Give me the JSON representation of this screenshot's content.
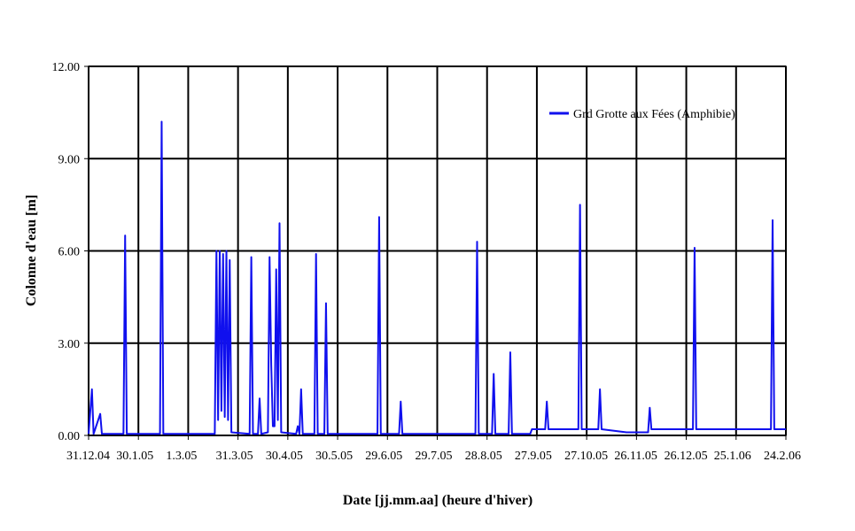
{
  "chart_data": {
    "type": "line",
    "xlabel": "Date [jj.mm.aa] (heure d'hiver)",
    "ylabel": "Colonne d'eau [m]",
    "xlim": [
      "2004-12-31",
      "2006-02-24"
    ],
    "xticks": [
      {
        "value": "2004-12-31",
        "label": "31.12.04"
      },
      {
        "value": "2005-01-30",
        "label": "30.1.05"
      },
      {
        "value": "2005-03-01",
        "label": "1.3.05"
      },
      {
        "value": "2005-03-31",
        "label": "31.3.05"
      },
      {
        "value": "2005-04-30",
        "label": "30.4.05"
      },
      {
        "value": "2005-05-30",
        "label": "30.5.05"
      },
      {
        "value": "2005-06-29",
        "label": "29.6.05"
      },
      {
        "value": "2005-07-29",
        "label": "29.7.05"
      },
      {
        "value": "2005-08-28",
        "label": "28.8.05"
      },
      {
        "value": "2005-09-27",
        "label": "27.9.05"
      },
      {
        "value": "2005-10-27",
        "label": "27.10.05"
      },
      {
        "value": "2005-11-26",
        "label": "26.11.05"
      },
      {
        "value": "2005-12-26",
        "label": "26.12.05"
      },
      {
        "value": "2006-01-25",
        "label": "25.1.06"
      },
      {
        "value": "2006-02-24",
        "label": "24.2.06"
      }
    ],
    "ylim": [
      0,
      12
    ],
    "yticks": [
      {
        "value": 0,
        "label": "0.00"
      },
      {
        "value": 3,
        "label": "3.00"
      },
      {
        "value": 6,
        "label": "6.00"
      },
      {
        "value": 9,
        "label": "9.00"
      },
      {
        "value": 12,
        "label": "12.00"
      }
    ],
    "grid": true,
    "legend": "upper right",
    "series": [
      {
        "name": "Grd Grotte aux Fées (Amphibie)",
        "color": "#1010ee",
        "x": [
          "2004-12-31",
          "2005-01-02",
          "2005-01-03",
          "2005-01-07",
          "2005-01-08",
          "2005-01-21",
          "2005-01-22",
          "2005-01-23",
          "2005-02-12",
          "2005-02-13",
          "2005-02-14",
          "2005-03-17",
          "2005-03-18",
          "2005-03-19",
          "2005-03-20",
          "2005-03-21",
          "2005-03-22",
          "2005-03-23",
          "2005-03-24",
          "2005-03-25",
          "2005-03-26",
          "2005-03-27",
          "2005-04-07",
          "2005-04-08",
          "2005-04-09",
          "2005-04-12",
          "2005-04-13",
          "2005-04-14",
          "2005-04-18",
          "2005-04-19",
          "2005-04-20",
          "2005-04-21",
          "2005-04-22",
          "2005-04-23",
          "2005-04-24",
          "2005-04-25",
          "2005-04-26",
          "2005-05-05",
          "2005-05-06",
          "2005-05-07",
          "2005-05-08",
          "2005-05-09",
          "2005-05-16",
          "2005-05-17",
          "2005-05-18",
          "2005-05-22",
          "2005-05-23",
          "2005-05-24",
          "2005-06-23",
          "2005-06-24",
          "2005-06-25",
          "2005-07-06",
          "2005-07-07",
          "2005-07-08",
          "2005-08-21",
          "2005-08-22",
          "2005-08-23",
          "2005-08-31",
          "2005-09-01",
          "2005-09-02",
          "2005-09-10",
          "2005-09-11",
          "2005-09-12",
          "2005-09-23",
          "2005-09-24",
          "2005-10-02",
          "2005-10-03",
          "2005-10-04",
          "2005-10-22",
          "2005-10-23",
          "2005-10-24",
          "2005-11-03",
          "2005-11-04",
          "2005-11-05",
          "2005-11-20",
          "2005-12-03",
          "2005-12-04",
          "2005-12-05",
          "2005-12-30",
          "2005-12-31",
          "2006-01-01",
          "2006-02-15",
          "2006-02-16",
          "2006-02-17",
          "2006-02-24"
        ],
        "values": [
          0.05,
          1.5,
          0.05,
          0.7,
          0.05,
          0.05,
          6.5,
          0.05,
          0.05,
          10.2,
          0.05,
          0.05,
          6.0,
          0.5,
          6.0,
          0.8,
          5.9,
          0.6,
          6.0,
          0.5,
          5.7,
          0.1,
          0.05,
          5.8,
          0.05,
          0.05,
          1.2,
          0.05,
          0.1,
          5.8,
          2.3,
          0.3,
          0.3,
          5.4,
          0.5,
          6.9,
          0.1,
          0.05,
          0.3,
          0.05,
          1.5,
          0.05,
          0.05,
          5.9,
          0.05,
          0.05,
          4.3,
          0.05,
          0.05,
          7.1,
          0.05,
          0.05,
          1.1,
          0.05,
          0.05,
          6.3,
          0.05,
          0.05,
          2.0,
          0.05,
          0.05,
          2.7,
          0.05,
          0.05,
          0.2,
          0.2,
          1.1,
          0.2,
          0.2,
          7.5,
          0.2,
          0.2,
          1.5,
          0.2,
          0.1,
          0.1,
          0.9,
          0.2,
          0.2,
          6.1,
          0.2,
          0.2,
          7.0,
          0.2,
          0.2
        ]
      }
    ]
  }
}
